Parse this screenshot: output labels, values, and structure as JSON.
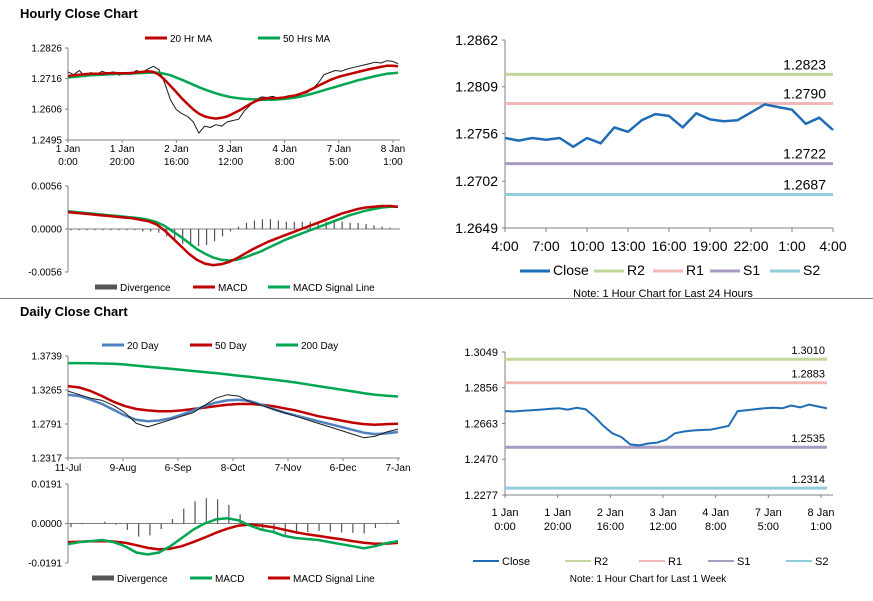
{
  "hourly_section_title": "Hourly Close Chart",
  "daily_section_title": "Daily Close Chart",
  "chart_data": [
    {
      "id": "hourly_price",
      "type": "line",
      "title": "",
      "legend": [
        "20 Hr MA",
        "50 Hrs MA"
      ],
      "colors": {
        "price": "#1a1a1a",
        "ma_short": "#c00000",
        "ma_long": "#00a651"
      },
      "y_ticks": [
        "1.2826",
        "1.2716",
        "1.2606",
        "1.2495"
      ],
      "ylim": [
        1.2495,
        1.2826
      ],
      "x_labels": [
        [
          "1 Jan",
          "0:00"
        ],
        [
          "1 Jan",
          "20:00"
        ],
        [
          "2 Jan",
          "16:00"
        ],
        [
          "3 Jan",
          "12:00"
        ],
        [
          "4 Jan",
          "8:00"
        ],
        [
          "7 Jan",
          "5:00"
        ],
        [
          "8 Jan",
          "1:00"
        ]
      ],
      "price": [
        1.274,
        1.273,
        1.2745,
        1.2722,
        1.2738,
        1.273,
        1.2742,
        1.2735,
        1.274,
        1.2728,
        1.2735,
        1.273,
        1.2745,
        1.2738,
        1.275,
        1.276,
        1.2748,
        1.27,
        1.264,
        1.2605,
        1.259,
        1.258,
        1.256,
        1.252,
        1.2545,
        1.254,
        1.255,
        1.2545,
        1.256,
        1.2565,
        1.257,
        1.26,
        1.262,
        1.264,
        1.265,
        1.2648,
        1.2652,
        1.2645,
        1.265,
        1.2655,
        1.265,
        1.266,
        1.2665,
        1.268,
        1.27,
        1.273,
        1.2738,
        1.2745,
        1.2742,
        1.275,
        1.2755,
        1.276,
        1.2765,
        1.277,
        1.2775,
        1.2772,
        1.278,
        1.2778,
        1.277
      ],
      "ma_short": [
        1.2725,
        1.2728,
        1.273,
        1.2732,
        1.2733,
        1.2733,
        1.2734,
        1.2735,
        1.2736,
        1.2735,
        1.2735,
        1.2736,
        1.2738,
        1.274,
        1.2742,
        1.274,
        1.273,
        1.2712,
        1.269,
        1.2668,
        1.2645,
        1.2625,
        1.2605,
        1.259,
        1.258,
        1.2575,
        1.2572,
        1.2575,
        1.258,
        1.259,
        1.26,
        1.2612,
        1.2624,
        1.2635,
        1.2642,
        1.2645,
        1.2645,
        1.2646,
        1.2648,
        1.2652,
        1.2656,
        1.2662,
        1.267,
        1.268,
        1.269,
        1.27,
        1.271,
        1.2718,
        1.2725,
        1.273,
        1.2735,
        1.274,
        1.2745,
        1.275,
        1.2754,
        1.2758,
        1.2762,
        1.2762,
        1.276
      ],
      "ma_long": [
        1.272,
        1.2722,
        1.2724,
        1.2726,
        1.2728,
        1.2729,
        1.273,
        1.2731,
        1.2732,
        1.2733,
        1.2733,
        1.2734,
        1.2735,
        1.2736,
        1.2737,
        1.2738,
        1.2737,
        1.2733,
        1.2728,
        1.272,
        1.2712,
        1.2703,
        1.2694,
        1.2685,
        1.2677,
        1.267,
        1.2663,
        1.2657,
        1.2652,
        1.2648,
        1.2645,
        1.2643,
        1.2642,
        1.2641,
        1.264,
        1.264,
        1.264,
        1.2641,
        1.2643,
        1.2645,
        1.2648,
        1.2652,
        1.2657,
        1.2662,
        1.2668,
        1.2674,
        1.268,
        1.2686,
        1.2692,
        1.2698,
        1.2704,
        1.271,
        1.2715,
        1.272,
        1.2725,
        1.2729,
        1.2733,
        1.2735,
        1.2737
      ]
    },
    {
      "id": "hourly_macd",
      "type": "line",
      "legend": [
        "Divergence",
        "MACD",
        "MACD Signal Line"
      ],
      "colors": {
        "divergence": "#555555",
        "macd": "#c00000",
        "signal": "#00a651"
      },
      "y_ticks": [
        "0.0056",
        "0.0000",
        "-0.0056"
      ],
      "ylim": [
        -0.0056,
        0.0056
      ],
      "macd": [
        0.0022,
        0.0021,
        0.002,
        0.0019,
        0.0018,
        0.0017,
        0.0016,
        0.0015,
        0.0014,
        0.0012,
        0.001,
        0.0006,
        -0.0002,
        -0.0012,
        -0.0022,
        -0.0032,
        -0.004,
        -0.0045,
        -0.0047,
        -0.0046,
        -0.0043,
        -0.0038,
        -0.0032,
        -0.0026,
        -0.0021,
        -0.0016,
        -0.0012,
        -0.0008,
        -0.0004,
        0.0,
        0.0004,
        0.0008,
        0.0012,
        0.0016,
        0.002,
        0.0023,
        0.0026,
        0.0028,
        0.0029,
        0.003,
        0.003,
        0.0029
      ],
      "signal": [
        0.0023,
        0.0022,
        0.0021,
        0.002,
        0.0019,
        0.0018,
        0.0017,
        0.0016,
        0.0015,
        0.0014,
        0.0012,
        0.0009,
        0.0004,
        -0.0003,
        -0.001,
        -0.0018,
        -0.0026,
        -0.0032,
        -0.0037,
        -0.004,
        -0.0041,
        -0.004,
        -0.0037,
        -0.0033,
        -0.0029,
        -0.0024,
        -0.0019,
        -0.0014,
        -0.001,
        -0.0006,
        -0.0002,
        0.0002,
        0.0006,
        0.001,
        0.0014,
        0.0018,
        0.0021,
        0.0024,
        0.0026,
        0.0028,
        0.0029,
        0.0029
      ]
    },
    {
      "id": "hourly_levels",
      "type": "line",
      "note": "Note: 1 Hour Chart for Last 24 Hours",
      "legend": [
        "Close",
        "R2",
        "R1",
        "S1",
        "S2"
      ],
      "colors": {
        "close": "#1f6eb5",
        "r2": "#c4d79b",
        "r1": "#f2b8b8",
        "s1": "#a89bc2",
        "s2": "#92cddc"
      },
      "y_ticks": [
        "1.2862",
        "1.2809",
        "1.2756",
        "1.2702",
        "1.2649"
      ],
      "ylim": [
        1.2649,
        1.2862
      ],
      "x_labels": [
        "4:00",
        "7:00",
        "10:00",
        "13:00",
        "16:00",
        "19:00",
        "22:00",
        "1:00",
        "4:00"
      ],
      "levels": {
        "r2": 1.2823,
        "r1": 1.279,
        "s1": 1.2722,
        "s2": 1.2687
      },
      "level_labels": {
        "r2": "1.2823",
        "r1": "1.2790",
        "s1": "1.2722",
        "s2": "1.2687"
      },
      "close": [
        1.2751,
        1.2748,
        1.2751,
        1.2749,
        1.2751,
        1.2741,
        1.2751,
        1.2745,
        1.2763,
        1.2758,
        1.2771,
        1.2778,
        1.2776,
        1.2763,
        1.2779,
        1.2772,
        1.277,
        1.2771,
        1.278,
        1.2789,
        1.2786,
        1.2783,
        1.2767,
        1.2774,
        1.276
      ]
    },
    {
      "id": "daily_price",
      "type": "line",
      "legend": [
        "20 Day",
        "50 Day",
        "200 Day"
      ],
      "colors": {
        "price": "#1a1a1a",
        "ma20": "#4f81bd",
        "ma50": "#c00000",
        "ma200": "#00a651"
      },
      "y_ticks": [
        "1.3739",
        "1.3265",
        "1.2791",
        "1.2317"
      ],
      "ylim": [
        1.2317,
        1.3739
      ],
      "x_labels": [
        "11-Jul",
        "9-Aug",
        "6-Sep",
        "8-Oct",
        "7-Nov",
        "6-Dec",
        "7-Jan"
      ],
      "price": [
        1.325,
        1.32,
        1.315,
        1.312,
        1.305,
        1.295,
        1.28,
        1.275,
        1.28,
        1.285,
        1.29,
        1.295,
        1.305,
        1.315,
        1.32,
        1.318,
        1.31,
        1.305,
        1.3,
        1.295,
        1.29,
        1.285,
        1.28,
        1.275,
        1.27,
        1.265,
        1.26,
        1.262,
        1.268,
        1.272
      ],
      "ma20": [
        1.32,
        1.318,
        1.313,
        1.307,
        1.299,
        1.291,
        1.285,
        1.283,
        1.284,
        1.287,
        1.292,
        1.298,
        1.304,
        1.309,
        1.312,
        1.313,
        1.311,
        1.306,
        1.3,
        1.295,
        1.291,
        1.287,
        1.283,
        1.279,
        1.275,
        1.271,
        1.267,
        1.265,
        1.266,
        1.268
      ],
      "ma50": [
        1.332,
        1.33,
        1.325,
        1.318,
        1.31,
        1.304,
        1.3,
        1.298,
        1.297,
        1.297,
        1.298,
        1.3,
        1.302,
        1.304,
        1.306,
        1.307,
        1.307,
        1.306,
        1.304,
        1.301,
        1.298,
        1.294,
        1.29,
        1.287,
        1.284,
        1.281,
        1.279,
        1.278,
        1.279,
        1.2795
      ],
      "ma200": [
        1.364,
        1.364,
        1.3638,
        1.3635,
        1.363,
        1.362,
        1.3605,
        1.359,
        1.3575,
        1.356,
        1.3545,
        1.353,
        1.3515,
        1.35,
        1.3482,
        1.3465,
        1.3447,
        1.343,
        1.341,
        1.339,
        1.337,
        1.3345,
        1.332,
        1.3295,
        1.327,
        1.3245,
        1.322,
        1.32,
        1.3185,
        1.3175
      ]
    },
    {
      "id": "daily_macd",
      "type": "line",
      "legend": [
        "Divergence",
        "MACD",
        "MACD Signal Line"
      ],
      "colors": {
        "divergence": "#555555",
        "macd": "#00a651",
        "signal": "#c00000"
      },
      "y_ticks": [
        "0.0191",
        "0.0000",
        "-0.0191"
      ],
      "ylim": [
        -0.0191,
        0.0191
      ],
      "macd": [
        -0.01,
        -0.009,
        -0.0085,
        -0.008,
        -0.009,
        -0.011,
        -0.014,
        -0.015,
        -0.014,
        -0.011,
        -0.007,
        -0.003,
        0.0,
        0.002,
        0.0025,
        0.0015,
        -0.001,
        -0.003,
        -0.004,
        -0.006,
        -0.007,
        -0.0075,
        -0.008,
        -0.009,
        -0.01,
        -0.011,
        -0.012,
        -0.011,
        -0.0095,
        -0.0085
      ],
      "signal": [
        -0.009,
        -0.0088,
        -0.0086,
        -0.0085,
        -0.0087,
        -0.0093,
        -0.0105,
        -0.0118,
        -0.0125,
        -0.0122,
        -0.011,
        -0.009,
        -0.0068,
        -0.0045,
        -0.0025,
        -0.001,
        -0.0005,
        -0.001,
        -0.0018,
        -0.003,
        -0.0042,
        -0.0052,
        -0.006,
        -0.0068,
        -0.0076,
        -0.0085,
        -0.0093,
        -0.0098,
        -0.0097,
        -0.0094
      ]
    },
    {
      "id": "weekly_levels",
      "type": "line",
      "note": "Note: 1 Hour Chart for Last 1 Week",
      "legend": [
        "Close",
        "R2",
        "R1",
        "S1",
        "S2"
      ],
      "colors": {
        "close": "#1f6eb5",
        "r2": "#c4d79b",
        "r1": "#f2b8b8",
        "s1": "#a89bc2",
        "s2": "#92cddc"
      },
      "y_ticks": [
        "1.3049",
        "1.2856",
        "1.2663",
        "1.2470",
        "1.2277"
      ],
      "ylim": [
        1.2277,
        1.3049
      ],
      "x_labels": [
        [
          "1 Jan",
          "0:00"
        ],
        [
          "1 Jan",
          "20:00"
        ],
        [
          "2 Jan",
          "16:00"
        ],
        [
          "3 Jan",
          "12:00"
        ],
        [
          "4 Jan",
          "8:00"
        ],
        [
          "7 Jan",
          "5:00"
        ],
        [
          "8 Jan",
          "1:00"
        ]
      ],
      "levels": {
        "r2": 1.301,
        "r1": 1.2883,
        "s1": 1.2535,
        "s2": 1.2314
      },
      "level_labels": {
        "r2": "1.3010",
        "r1": "1.2883",
        "s1": "1.2535",
        "s2": "1.2314"
      },
      "close": [
        1.273,
        1.2728,
        1.2732,
        1.2735,
        1.2738,
        1.2742,
        1.2745,
        1.2738,
        1.2748,
        1.274,
        1.27,
        1.265,
        1.261,
        1.259,
        1.255,
        1.2545,
        1.2555,
        1.256,
        1.2575,
        1.261,
        1.262,
        1.2625,
        1.2628,
        1.263,
        1.264,
        1.265,
        1.273,
        1.2735,
        1.274,
        1.2745,
        1.2748,
        1.2745,
        1.276,
        1.275,
        1.2765,
        1.2755,
        1.2745
      ]
    }
  ]
}
